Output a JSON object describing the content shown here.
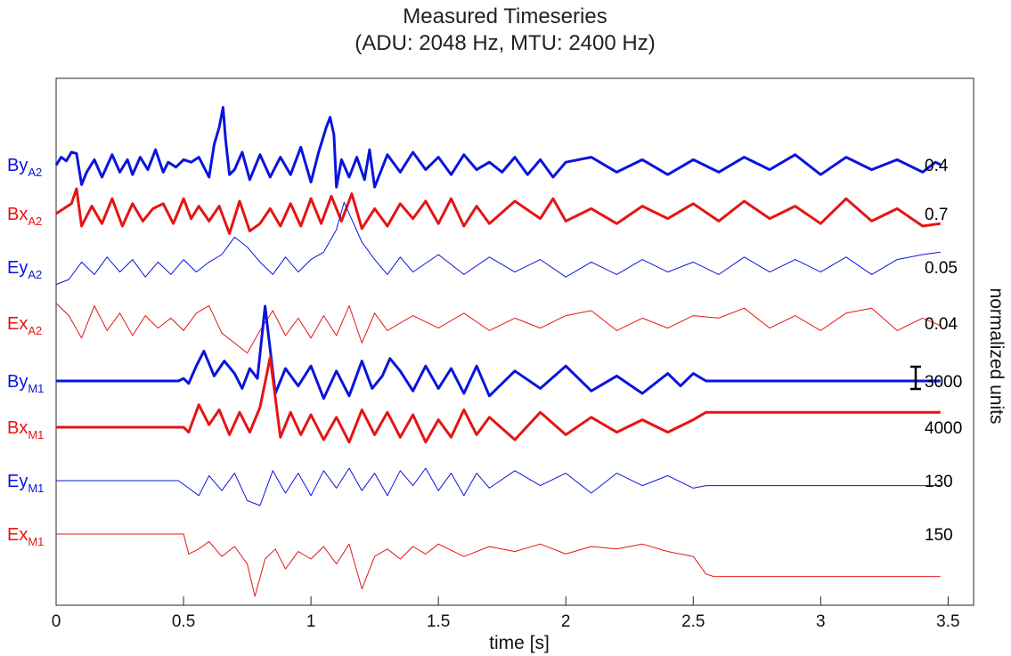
{
  "chart_data": {
    "type": "line",
    "title_lines": [
      "Measured Timeseries",
      "(ADU: 2048 Hz, MTU: 2400 Hz)"
    ],
    "xlabel": "time [s]",
    "ylabel": "normalized units",
    "xlim": [
      0,
      3.6
    ],
    "xticks": [
      0,
      0.5,
      1,
      1.5,
      2,
      2.5,
      3,
      3.5
    ],
    "xtick_labels": [
      "0",
      "0.5",
      "1",
      "1.5",
      "2",
      "2.5",
      "3",
      "3.5"
    ],
    "grid": false,
    "colors": {
      "blue": "#0a14dc",
      "red": "#e61414"
    },
    "scale_bar_channel": "By_M1",
    "series": [
      {
        "id": "By_A2",
        "label_main": "By",
        "label_sub": "A2",
        "color": "blue",
        "width": "thick",
        "scale": "0.4",
        "x": [
          0,
          0.02,
          0.04,
          0.06,
          0.08,
          0.1,
          0.12,
          0.15,
          0.18,
          0.22,
          0.25,
          0.28,
          0.3,
          0.33,
          0.36,
          0.39,
          0.42,
          0.44,
          0.47,
          0.5,
          0.53,
          0.56,
          0.6,
          0.62,
          0.64,
          0.655,
          0.665,
          0.68,
          0.7,
          0.73,
          0.76,
          0.8,
          0.84,
          0.88,
          0.92,
          0.96,
          1.0,
          1.03,
          1.06,
          1.075,
          1.09,
          1.1,
          1.12,
          1.15,
          1.18,
          1.21,
          1.23,
          1.25,
          1.3,
          1.35,
          1.4,
          1.45,
          1.5,
          1.55,
          1.6,
          1.65,
          1.7,
          1.75,
          1.8,
          1.85,
          1.9,
          1.95,
          2.0,
          2.1,
          2.2,
          2.3,
          2.4,
          2.5,
          2.6,
          2.7,
          2.8,
          2.9,
          3.0,
          3.1,
          3.2,
          3.3,
          3.4,
          3.45,
          3.47
        ],
        "y": [
          -0.02,
          0.3,
          0.15,
          0.5,
          0.45,
          -0.8,
          -0.3,
          0.2,
          -0.5,
          0.4,
          -0.3,
          0.2,
          -0.4,
          0.3,
          -0.2,
          0.6,
          -0.3,
          0.1,
          -0.1,
          0.2,
          0.1,
          0.3,
          -0.5,
          0.8,
          1.5,
          2.3,
          1.0,
          -0.4,
          -0.2,
          0.5,
          -0.6,
          0.4,
          -0.5,
          0.3,
          -0.4,
          0.7,
          -0.7,
          0.5,
          1.5,
          1.9,
          1.2,
          -0.9,
          0.2,
          -0.5,
          0.3,
          -0.6,
          0.6,
          -0.9,
          0.4,
          -0.3,
          0.5,
          -0.2,
          0.3,
          -0.4,
          0.4,
          -0.2,
          0.1,
          -0.3,
          0.3,
          -0.4,
          0.2,
          -0.5,
          0.1,
          0.3,
          -0.3,
          0.2,
          -0.4,
          0.2,
          -0.3,
          0.3,
          -0.2,
          0.4,
          -0.4,
          0.3,
          -0.2,
          0.2,
          -0.3,
          0.1,
          0.0
        ]
      },
      {
        "id": "Bx_A2",
        "label_main": "Bx",
        "label_sub": "A2",
        "color": "red",
        "width": "thick",
        "scale": "0.7",
        "x": [
          0,
          0.03,
          0.06,
          0.08,
          0.1,
          0.14,
          0.18,
          0.22,
          0.26,
          0.3,
          0.34,
          0.38,
          0.42,
          0.46,
          0.5,
          0.53,
          0.56,
          0.6,
          0.64,
          0.68,
          0.72,
          0.76,
          0.8,
          0.84,
          0.88,
          0.92,
          0.96,
          1.0,
          1.04,
          1.08,
          1.12,
          1.16,
          1.2,
          1.25,
          1.3,
          1.35,
          1.4,
          1.45,
          1.5,
          1.55,
          1.6,
          1.65,
          1.7,
          1.8,
          1.9,
          1.95,
          2.0,
          2.1,
          2.2,
          2.3,
          2.4,
          2.5,
          2.6,
          2.7,
          2.8,
          2.9,
          3.0,
          3.1,
          3.2,
          3.3,
          3.4,
          3.47
        ],
        "y": [
          0.0,
          0.2,
          0.4,
          1.0,
          -0.5,
          0.3,
          -0.4,
          0.6,
          -0.5,
          0.4,
          -0.3,
          0.2,
          0.4,
          -0.4,
          0.6,
          -0.2,
          0.3,
          -0.3,
          0.3,
          -0.8,
          0.5,
          -0.7,
          -0.4,
          0.2,
          -0.5,
          0.4,
          -0.5,
          0.6,
          -0.4,
          0.7,
          -0.3,
          0.8,
          -0.6,
          0.2,
          -0.5,
          0.4,
          -0.2,
          0.5,
          -0.4,
          0.6,
          -0.5,
          0.3,
          -0.4,
          0.5,
          -0.2,
          0.6,
          -0.3,
          0.2,
          -0.4,
          0.3,
          -0.2,
          0.4,
          -0.3,
          0.5,
          -0.2,
          0.3,
          -0.4,
          0.6,
          -0.3,
          0.2,
          -0.5,
          -0.4
        ]
      },
      {
        "id": "Ey_A2",
        "label_main": "Ey",
        "label_sub": "A2",
        "color": "blue",
        "width": "thin",
        "scale": "0.05",
        "x": [
          0,
          0.05,
          0.1,
          0.15,
          0.2,
          0.25,
          0.3,
          0.35,
          0.4,
          0.45,
          0.5,
          0.55,
          0.6,
          0.65,
          0.7,
          0.75,
          0.8,
          0.85,
          0.9,
          0.95,
          1.0,
          1.05,
          1.1,
          1.13,
          1.2,
          1.25,
          1.3,
          1.35,
          1.4,
          1.5,
          1.6,
          1.7,
          1.8,
          1.9,
          2.0,
          2.1,
          2.2,
          2.3,
          2.4,
          2.5,
          2.6,
          2.7,
          2.8,
          2.9,
          3.0,
          3.1,
          3.2,
          3.3,
          3.4,
          3.47
        ],
        "y": [
          -0.7,
          -0.5,
          0.2,
          -0.3,
          0.4,
          -0.2,
          0.3,
          -0.4,
          0.2,
          -0.3,
          0.3,
          -0.2,
          0.2,
          0.5,
          1.2,
          0.8,
          0.2,
          -0.3,
          0.4,
          -0.2,
          0.3,
          0.6,
          1.5,
          2.6,
          1.0,
          0.3,
          -0.3,
          0.4,
          -0.2,
          0.5,
          -0.3,
          0.4,
          -0.2,
          0.3,
          -0.4,
          0.2,
          -0.3,
          0.3,
          -0.2,
          0.2,
          -0.3,
          0.4,
          -0.2,
          0.3,
          -0.2,
          0.4,
          -0.3,
          0.3,
          0.5,
          0.6
        ]
      },
      {
        "id": "Ex_A2",
        "label_main": "Ex",
        "label_sub": "A2",
        "color": "red",
        "width": "thin",
        "scale": "0.04",
        "x": [
          0,
          0.05,
          0.1,
          0.15,
          0.2,
          0.25,
          0.3,
          0.35,
          0.4,
          0.45,
          0.5,
          0.55,
          0.6,
          0.65,
          0.7,
          0.75,
          0.8,
          0.85,
          0.9,
          0.95,
          1.0,
          1.05,
          1.1,
          1.15,
          1.2,
          1.25,
          1.3,
          1.4,
          1.5,
          1.6,
          1.7,
          1.8,
          1.9,
          2.0,
          2.1,
          2.2,
          2.3,
          2.4,
          2.5,
          2.6,
          2.7,
          2.8,
          2.9,
          3.0,
          3.1,
          3.2,
          3.3,
          3.4,
          3.47
        ],
        "y": [
          0.8,
          0.3,
          -0.6,
          0.7,
          -0.3,
          0.4,
          -0.5,
          0.3,
          -0.2,
          0.2,
          -0.3,
          0.4,
          0.7,
          -0.4,
          -0.8,
          -1.2,
          -0.3,
          0.5,
          -0.5,
          0.2,
          -0.6,
          0.3,
          -0.5,
          0.7,
          -0.8,
          0.4,
          -0.3,
          0.3,
          -0.2,
          0.4,
          -0.3,
          0.2,
          -0.2,
          0.3,
          0.5,
          -0.3,
          0.2,
          -0.2,
          0.3,
          0.2,
          0.6,
          -0.2,
          0.3,
          -0.3,
          0.4,
          0.6,
          -0.3,
          0.2,
          -0.1
        ]
      },
      {
        "id": "By_M1",
        "label_main": "By",
        "label_sub": "M1",
        "color": "blue",
        "width": "thick",
        "scale": "3000",
        "x": [
          0,
          0.48,
          0.5,
          0.52,
          0.55,
          0.58,
          0.62,
          0.66,
          0.7,
          0.73,
          0.76,
          0.79,
          0.82,
          0.86,
          0.9,
          0.95,
          1.0,
          1.05,
          1.1,
          1.15,
          1.2,
          1.24,
          1.28,
          1.31,
          1.35,
          1.4,
          1.45,
          1.5,
          1.55,
          1.6,
          1.65,
          1.7,
          1.8,
          1.9,
          2.0,
          2.1,
          2.2,
          2.3,
          2.4,
          2.45,
          2.5,
          2.55,
          3.47
        ],
        "y": [
          0.0,
          0.0,
          0.1,
          -0.1,
          0.6,
          1.2,
          0.2,
          0.8,
          0.3,
          -0.3,
          0.5,
          0.1,
          3.0,
          -0.5,
          0.5,
          -0.2,
          0.6,
          -0.7,
          0.4,
          -0.6,
          0.8,
          -0.3,
          0.2,
          0.9,
          0.4,
          -0.4,
          0.6,
          -0.3,
          0.5,
          -0.5,
          0.6,
          -0.6,
          0.4,
          -0.3,
          0.6,
          -0.4,
          0.2,
          -0.5,
          0.3,
          -0.2,
          0.3,
          0.0,
          0.0
        ]
      },
      {
        "id": "Bx_M1",
        "label_main": "Bx",
        "label_sub": "M1",
        "color": "red",
        "width": "thick",
        "scale": "4000",
        "x": [
          0,
          0.5,
          0.52,
          0.56,
          0.6,
          0.64,
          0.68,
          0.72,
          0.76,
          0.8,
          0.84,
          0.88,
          0.92,
          0.96,
          1.0,
          1.05,
          1.1,
          1.15,
          1.2,
          1.25,
          1.3,
          1.35,
          1.4,
          1.45,
          1.5,
          1.55,
          1.6,
          1.65,
          1.7,
          1.8,
          1.9,
          2.0,
          2.1,
          2.2,
          2.3,
          2.4,
          2.5,
          2.55,
          3.47
        ],
        "y": [
          0.0,
          0.0,
          -0.2,
          0.9,
          0.1,
          0.7,
          -0.3,
          0.6,
          -0.2,
          0.8,
          2.8,
          -0.4,
          0.6,
          -0.3,
          0.5,
          -0.5,
          0.4,
          -0.6,
          0.7,
          -0.3,
          0.6,
          -0.4,
          0.5,
          -0.6,
          0.3,
          -0.4,
          0.7,
          -0.3,
          0.4,
          -0.5,
          0.6,
          -0.3,
          0.4,
          -0.2,
          0.3,
          -0.2,
          0.3,
          0.6,
          0.6
        ]
      },
      {
        "id": "Ey_M1",
        "label_main": "Ey",
        "label_sub": "M1",
        "color": "blue",
        "width": "thin",
        "scale": "130",
        "x": [
          0,
          0.48,
          0.52,
          0.56,
          0.6,
          0.65,
          0.7,
          0.75,
          0.8,
          0.85,
          0.9,
          0.95,
          1.0,
          1.05,
          1.1,
          1.15,
          1.2,
          1.25,
          1.3,
          1.35,
          1.4,
          1.45,
          1.5,
          1.55,
          1.6,
          1.65,
          1.7,
          1.8,
          1.9,
          2.0,
          2.1,
          2.2,
          2.3,
          2.4,
          2.5,
          2.55,
          3.47
        ],
        "y": [
          0.0,
          0.0,
          -0.3,
          -0.6,
          0.2,
          -0.4,
          0.3,
          -0.8,
          -1.0,
          0.4,
          -0.5,
          0.3,
          -0.6,
          0.4,
          -0.3,
          0.5,
          -0.4,
          0.3,
          -0.6,
          0.4,
          -0.2,
          0.5,
          -0.4,
          0.3,
          -0.6,
          0.3,
          -0.3,
          0.4,
          -0.2,
          0.3,
          -0.5,
          0.3,
          -0.2,
          0.2,
          -0.3,
          -0.2,
          -0.2
        ]
      },
      {
        "id": "Ex_M1",
        "label_main": "Ex",
        "label_sub": "M1",
        "color": "red",
        "width": "thin",
        "scale": "150",
        "x": [
          0,
          0.5,
          0.52,
          0.56,
          0.6,
          0.65,
          0.7,
          0.75,
          0.78,
          0.82,
          0.86,
          0.9,
          0.95,
          1.0,
          1.05,
          1.1,
          1.15,
          1.2,
          1.25,
          1.3,
          1.35,
          1.4,
          1.45,
          1.5,
          1.6,
          1.7,
          1.8,
          1.9,
          2.0,
          2.1,
          2.2,
          2.3,
          2.4,
          2.5,
          2.55,
          2.58,
          3.47
        ],
        "y": [
          0.0,
          0.0,
          -0.8,
          -0.6,
          -0.3,
          -0.9,
          -0.5,
          -1.2,
          -2.5,
          -1.0,
          -0.6,
          -1.4,
          -0.7,
          -1.0,
          -0.5,
          -1.2,
          -0.4,
          -2.2,
          -0.9,
          -0.6,
          -1.0,
          -0.5,
          -0.8,
          -0.4,
          -0.9,
          -0.5,
          -0.7,
          -0.4,
          -0.8,
          -0.5,
          -0.6,
          -0.4,
          -0.7,
          -0.9,
          -1.6,
          -1.7,
          -1.7
        ]
      }
    ]
  }
}
